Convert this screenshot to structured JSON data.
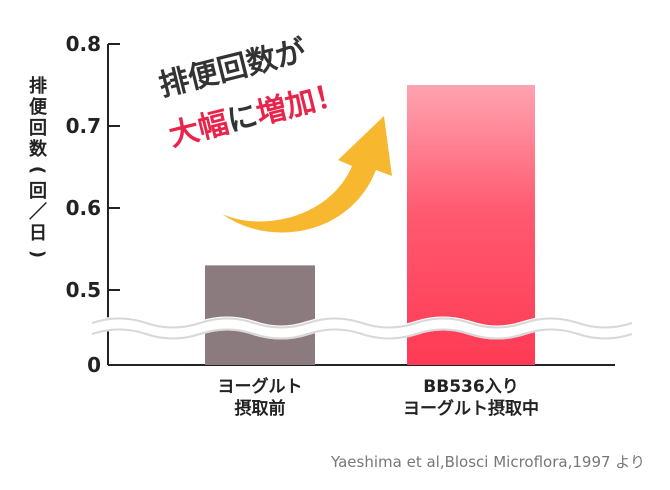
{
  "chart_data": {
    "type": "bar",
    "categories": [
      [
        "ヨーグルト",
        "摂取前"
      ],
      [
        "BB536入り",
        "ヨーグルト摂取中"
      ]
    ],
    "values": [
      0.53,
      0.75
    ],
    "ylabel": "排便回数(回／日)",
    "ylim": [
      0.45,
      0.8
    ],
    "yticks": [
      "0.8",
      "0.7",
      "0.6",
      "0.5",
      "0"
    ],
    "axis_break": true,
    "grid": false,
    "bar_colors": [
      "#8c7b7e",
      "#ff3a55"
    ]
  },
  "annotation": {
    "line1": "排便回数が",
    "line2_highlight": "大幅",
    "line2_mid": "に",
    "line2_highlight2": "増加",
    "line2_end": "！",
    "text_color": "#333333",
    "highlight_color": "#e8244a",
    "arrow_color": "#f7b830"
  },
  "source": "Yaeshima et al,Blosci Microflora,1997 より"
}
